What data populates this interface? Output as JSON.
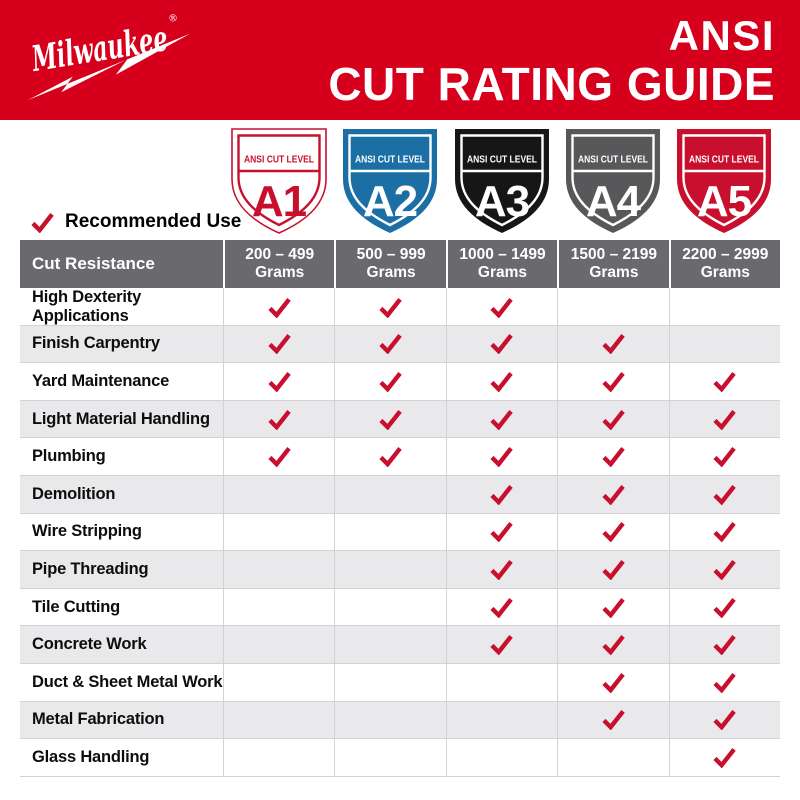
{
  "header": {
    "brand": "Milwaukee",
    "reg_mark": "®",
    "title_line1": "ANSI",
    "title_line2": "CUT RATING GUIDE"
  },
  "legend": {
    "label": "Recommended Use"
  },
  "shields": [
    {
      "banner": "ANSI CUT LEVEL",
      "level": "A1",
      "fill": "#ffffff",
      "text_color": "#c8102e",
      "outline": "#c8102e",
      "edge": "#c8102e"
    },
    {
      "banner": "ANSI CUT LEVEL",
      "level": "A2",
      "fill": "#1b6fa5",
      "text_color": "#ffffff",
      "outline": "#ffffff",
      "edge": "none"
    },
    {
      "banner": "ANSI CUT LEVEL",
      "level": "A3",
      "fill": "#161616",
      "text_color": "#ffffff",
      "outline": "#ffffff",
      "edge": "none"
    },
    {
      "banner": "ANSI CUT LEVEL",
      "level": "A4",
      "fill": "#58585a",
      "text_color": "#ffffff",
      "outline": "#ffffff",
      "edge": "none"
    },
    {
      "banner": "ANSI CUT LEVEL",
      "level": "A5",
      "fill": "#c8102e",
      "text_color": "#ffffff",
      "outline": "#ffffff",
      "edge": "none"
    }
  ],
  "table": {
    "corner_header": "Cut Resistance",
    "columns": [
      {
        "range": "200 – 499",
        "unit": "Grams"
      },
      {
        "range": "500 – 999",
        "unit": "Grams"
      },
      {
        "range": "1000 – 1499",
        "unit": "Grams"
      },
      {
        "range": "1500 – 2199",
        "unit": "Grams"
      },
      {
        "range": "2200 – 2999",
        "unit": "Grams"
      }
    ],
    "rows": [
      {
        "label": "High Dexterity Applications",
        "checks": [
          true,
          true,
          true,
          false,
          false
        ]
      },
      {
        "label": "Finish Carpentry",
        "checks": [
          true,
          true,
          true,
          true,
          false
        ]
      },
      {
        "label": "Yard Maintenance",
        "checks": [
          true,
          true,
          true,
          true,
          true
        ]
      },
      {
        "label": "Light Material Handling",
        "checks": [
          true,
          true,
          true,
          true,
          true
        ]
      },
      {
        "label": "Plumbing",
        "checks": [
          true,
          true,
          true,
          true,
          true
        ]
      },
      {
        "label": "Demolition",
        "checks": [
          false,
          false,
          true,
          true,
          true
        ]
      },
      {
        "label": "Wire Stripping",
        "checks": [
          false,
          false,
          true,
          true,
          true
        ]
      },
      {
        "label": "Pipe Threading",
        "checks": [
          false,
          false,
          true,
          true,
          true
        ]
      },
      {
        "label": "Tile Cutting",
        "checks": [
          false,
          false,
          true,
          true,
          true
        ]
      },
      {
        "label": "Concrete Work",
        "checks": [
          false,
          false,
          true,
          true,
          true
        ]
      },
      {
        "label": "Duct & Sheet Metal Work",
        "checks": [
          false,
          false,
          false,
          true,
          true
        ]
      },
      {
        "label": "Metal Fabrication",
        "checks": [
          false,
          false,
          false,
          true,
          true
        ]
      },
      {
        "label": "Glass Handling",
        "checks": [
          false,
          false,
          false,
          false,
          true
        ]
      }
    ]
  },
  "colors": {
    "header_red": "#d6001c",
    "check_red": "#c8102e",
    "table_header_gray": "#6a6a6e",
    "alt_row_gray": "#e9e9eb",
    "border_gray": "#d2d2d5",
    "shield_blue": "#1b6fa5",
    "shield_black": "#161616",
    "shield_gray": "#58585a",
    "shield_red": "#c8102e"
  }
}
